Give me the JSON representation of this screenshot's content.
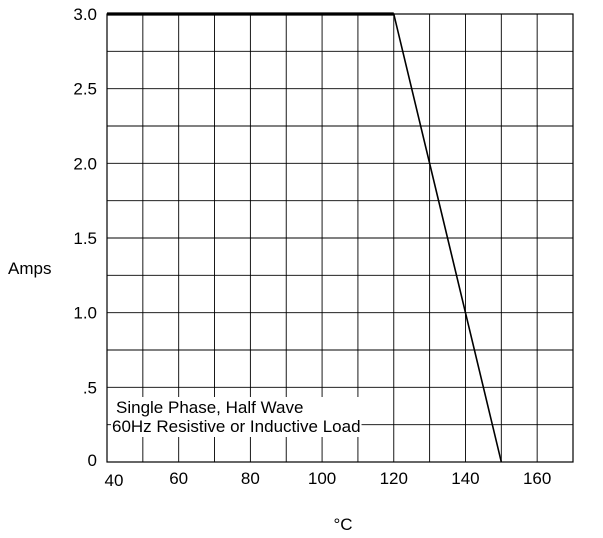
{
  "chart_data": {
    "type": "line",
    "title": "",
    "xlabel": "°C",
    "ylabel": "Amps",
    "xlim": [
      40,
      170
    ],
    "ylim": [
      0,
      3.0
    ],
    "x_ticks": [
      40,
      60,
      80,
      100,
      120,
      140,
      160
    ],
    "x_tick_labels": [
      "40",
      "60",
      "80",
      "100",
      "120",
      "140",
      "160"
    ],
    "y_ticks": [
      0,
      0.5,
      1.0,
      1.5,
      2.0,
      2.5,
      3.0
    ],
    "y_tick_labels": [
      "0",
      ".5",
      "1.0",
      "1.5",
      "2.0",
      "2.5",
      "3.0"
    ],
    "grid": true,
    "grid_step_x": 10,
    "grid_step_y": 0.25,
    "series": [
      {
        "x": [
          40,
          120,
          150
        ],
        "y": [
          3.0,
          3.0,
          0
        ],
        "color": "#000000"
      }
    ],
    "annotations": [
      "Single Phase, Half Wave",
      "60Hz Resistive or Inductive Load"
    ]
  }
}
